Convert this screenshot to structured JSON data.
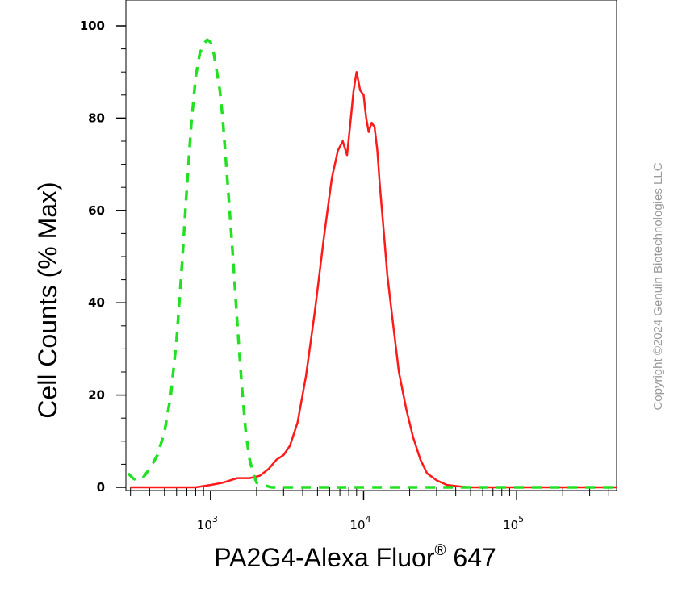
{
  "chart_data": {
    "type": "line",
    "title": "",
    "xlabel": "PA2G4-Alexa Fluor",
    "xlabel_sup": "®",
    "xlabel_suffix": " 647",
    "ylabel": "Cell Counts (% Max)",
    "xscale": "log",
    "xlim": [
      280,
      450000
    ],
    "ylim": [
      -2,
      103
    ],
    "grid": false,
    "legend": "none",
    "yticks": [
      0,
      20,
      40,
      60,
      80,
      100
    ],
    "xticks": [
      {
        "value": 1000,
        "base": "10",
        "exp": "3"
      },
      {
        "value": 10000,
        "base": "10",
        "exp": "4"
      },
      {
        "value": 100000,
        "base": "10",
        "exp": "5"
      }
    ],
    "series": [
      {
        "color": "#ff1a1a",
        "style": "solid",
        "x": [
          300,
          600,
          800,
          1000,
          1200,
          1500,
          1800,
          2100,
          2400,
          2700,
          3000,
          3300,
          3700,
          4200,
          4800,
          5500,
          6200,
          6800,
          7300,
          7800,
          8200,
          8600,
          9000,
          9500,
          10000,
          10400,
          10800,
          11300,
          11800,
          12300,
          12800,
          13500,
          14300,
          15500,
          17000,
          19000,
          21000,
          23500,
          26000,
          30000,
          35000,
          42000,
          50000,
          70000,
          100000,
          200000,
          450000
        ],
        "y": [
          0,
          0,
          0,
          0.5,
          1,
          2,
          2,
          2.5,
          4,
          6,
          7,
          9,
          14,
          24,
          38,
          54,
          67,
          73,
          75,
          72,
          79,
          86,
          90,
          86,
          85,
          80,
          77,
          79,
          78,
          73,
          65,
          56,
          46,
          36,
          25,
          17,
          11,
          6,
          3,
          1.5,
          0.5,
          0.2,
          0,
          0,
          0,
          0,
          0
        ]
      },
      {
        "color": "#22e022",
        "style": "dashed",
        "x": [
          290,
          310,
          330,
          360,
          400,
          450,
          500,
          550,
          600,
          650,
          700,
          750,
          800,
          850,
          900,
          950,
          1000,
          1050,
          1100,
          1150,
          1200,
          1300,
          1400,
          1500,
          1600,
          1700,
          1800,
          1900,
          2000,
          2200,
          2500,
          3000,
          5000,
          10000,
          50000,
          200000,
          450000
        ],
        "y": [
          3,
          2,
          1.5,
          2,
          4,
          7,
          12,
          20,
          32,
          48,
          65,
          79,
          89,
          94,
          96,
          97,
          96.5,
          94,
          90,
          86,
          80,
          65,
          50,
          35,
          22,
          12,
          6,
          3,
          1,
          0.5,
          0,
          0,
          0,
          0,
          0,
          0,
          0
        ]
      }
    ]
  },
  "copyright": "Copyright ©2024 Genuin Biotechnologies LLC"
}
